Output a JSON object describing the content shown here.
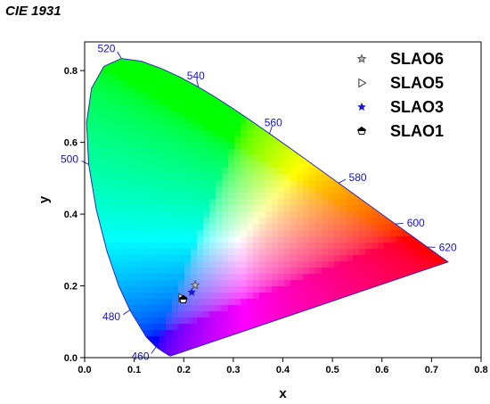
{
  "chart_data": {
    "type": "scatter",
    "title": "CIE 1931",
    "xlabel": "x",
    "ylabel": "y",
    "xlim": [
      0.0,
      0.8
    ],
    "ylim": [
      0.0,
      0.88
    ],
    "x_ticks": [
      "0.0",
      "0.1",
      "0.2",
      "0.3",
      "0.4",
      "0.5",
      "0.6",
      "0.7",
      "0.8"
    ],
    "y_ticks": [
      "0.0",
      "0.2",
      "0.4",
      "0.6",
      "0.8"
    ],
    "grid": false,
    "legend_position": "top-right",
    "spectral_locus_labels": [
      {
        "text": "460",
        "x": 0.144,
        "y": 0.0297
      },
      {
        "text": "480",
        "x": 0.0913,
        "y": 0.1327
      },
      {
        "text": "500",
        "x": 0.0082,
        "y": 0.5384
      },
      {
        "text": "520",
        "x": 0.0743,
        "y": 0.8338
      },
      {
        "text": "540",
        "x": 0.2296,
        "y": 0.7543
      },
      {
        "text": "560",
        "x": 0.3731,
        "y": 0.6245
      },
      {
        "text": "580",
        "x": 0.5125,
        "y": 0.4866
      },
      {
        "text": "600",
        "x": 0.627,
        "y": 0.3725
      },
      {
        "text": "620",
        "x": 0.6915,
        "y": 0.3083
      }
    ],
    "series": [
      {
        "name": "SLAO6",
        "marker": "star-outline",
        "color": "#555555",
        "x": [
          0.223
        ],
        "y": [
          0.202
        ]
      },
      {
        "name": "SLAO5",
        "marker": "triangle-right-open",
        "color": "#333333",
        "x": [
          0.196
        ],
        "y": [
          0.167
        ]
      },
      {
        "name": "SLAO3",
        "marker": "star-filled",
        "color": "#1a1acc",
        "x": [
          0.216
        ],
        "y": [
          0.182
        ]
      },
      {
        "name": "SLAO1",
        "marker": "half-pentagon",
        "color": "#000000",
        "x": [
          0.199
        ],
        "y": [
          0.162
        ]
      }
    ]
  }
}
